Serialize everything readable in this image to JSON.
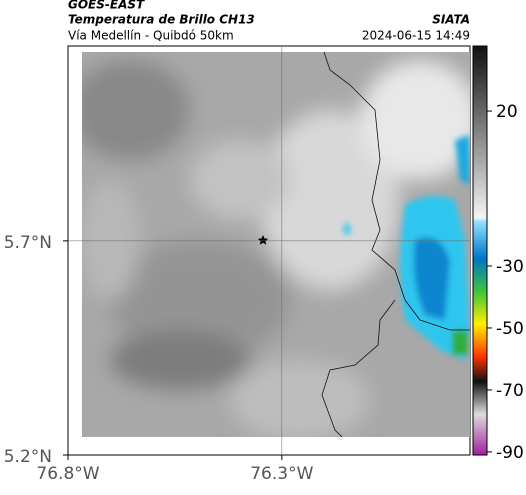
{
  "header": {
    "title": "GOES-EAST",
    "subtitle": "Temperatura de Brillo CH13",
    "source": "SIATA",
    "route": "Vía Medellín - Quibdó 50km",
    "timestamp": "2024-06-15 14:49"
  },
  "map": {
    "xlim": [
      -76.8,
      -75.86
    ],
    "ylim": [
      5.2,
      6.155
    ],
    "xticks": [
      {
        "value": -76.8,
        "label": "76.8°W"
      },
      {
        "value": -76.3,
        "label": "76.3°W"
      }
    ],
    "yticks": [
      {
        "value": 5.7,
        "label": "5.7°N"
      },
      {
        "value": 5.2,
        "label": "5.2°N"
      }
    ],
    "grid": true
  },
  "colorbar": {
    "lim": [
      41,
      -91
    ],
    "ticks": [
      20,
      -30,
      -50,
      -70,
      -90
    ]
  }
}
